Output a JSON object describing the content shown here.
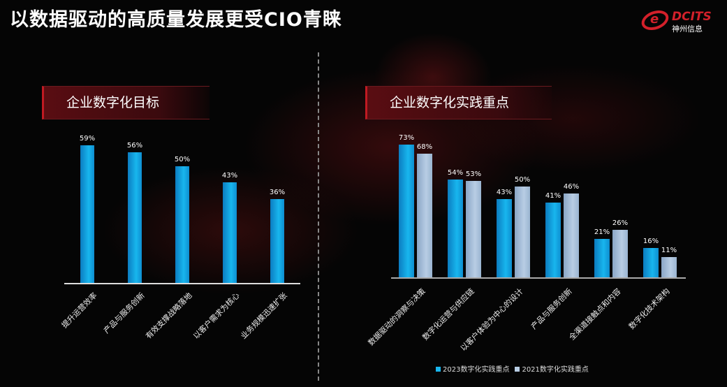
{
  "title": "以数据驱动的高质量发展更受CIO青睐",
  "logo": {
    "brand": "DCITS",
    "cn": "神州信息"
  },
  "colors": {
    "series_2023": "#18b6ee",
    "series_2021": "#b8cde4",
    "accent": "#c01a22"
  },
  "chart_data": [
    {
      "type": "bar",
      "title": "企业数字化目标",
      "categories": [
        "提升运营效率",
        "产品与服务创新",
        "有效支撑战略落地",
        "以客户需求为核心",
        "业务规模迅速扩张"
      ],
      "values": [
        59,
        56,
        50,
        43,
        36
      ],
      "labels": [
        "59%",
        "56%",
        "50%",
        "43%",
        "36%"
      ],
      "unit": "%"
    },
    {
      "type": "bar",
      "title": "企业数字化实践重点",
      "categories": [
        "数据驱动的洞察与决策",
        "数字化运营与供应链",
        "以客户体验为中心的设计",
        "产品与服务创新",
        "全渠道接触点和内容",
        "数字化技术架构"
      ],
      "series": [
        {
          "name": "2023数字化实践重点",
          "values": [
            73,
            54,
            43,
            41,
            21,
            16
          ],
          "labels": [
            "73%",
            "54%",
            "43%",
            "41%",
            "21%",
            "16%"
          ]
        },
        {
          "name": "2021数字化实践重点",
          "values": [
            68,
            53,
            50,
            46,
            26,
            11
          ],
          "labels": [
            "68%",
            "53%",
            "50%",
            "46%",
            "26%",
            "11%"
          ]
        }
      ],
      "legend": "bottom",
      "unit": "%"
    }
  ]
}
